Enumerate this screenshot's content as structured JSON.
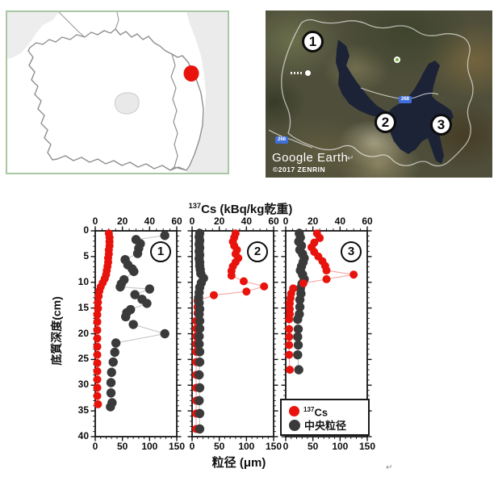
{
  "colors": {
    "cs_red": "#e8130c",
    "grain_dark": "#3a3a3a",
    "cs_line": "#f2a9a4",
    "grain_line": "#c4c4c4",
    "map_border_green": "#a9c7a5",
    "water_navy": "#1c2336",
    "road_badge_blue": "#3f6fd8"
  },
  "map_panel": {
    "location_marker": "red-dot"
  },
  "satellite_panel": {
    "markers": [
      {
        "label": "1"
      },
      {
        "label": "2"
      },
      {
        "label": "3"
      }
    ],
    "road_badges": [
      {
        "label": "268"
      },
      {
        "label": "268"
      }
    ],
    "credit_primary": "Google Earth",
    "credit_secondary": "©2017 ZENRIN",
    "return_mark": "↵"
  },
  "chart_data": {
    "type": "scatter",
    "top_axis": {
      "title_sup": "137",
      "title_main": "Cs (kBq/kg乾重)",
      "min": 0,
      "max": 60,
      "major_ticks": [
        0,
        20,
        40,
        60
      ],
      "minor_step": 5
    },
    "bottom_axis": {
      "title": "粒径 (μm)",
      "min": 0,
      "max": 150,
      "major_ticks": [
        0,
        50,
        100,
        150
      ],
      "minor_step": 10
    },
    "y_axis": {
      "title": "底質深度(cm)",
      "min": 0,
      "max": 40,
      "major_ticks": [
        0,
        5,
        10,
        15,
        20,
        25,
        30,
        35,
        40
      ],
      "minor_step": 1
    },
    "legend": {
      "cs_sup": "137",
      "cs_label": "Cs",
      "grain_label": "中央粒径",
      "position": "bottom-right-panel-3"
    },
    "series_info": [
      {
        "key": "cs",
        "name": "137Cs",
        "axis": "top",
        "units": "kBq/kg"
      },
      {
        "key": "grain",
        "name": "中央粒径",
        "axis": "bottom",
        "units": "μm"
      }
    ],
    "panels": [
      {
        "label": "1",
        "red_on_top": true,
        "cs": [
          [
            0.5,
            10
          ],
          [
            1.3,
            10.5
          ],
          [
            2.1,
            10.5
          ],
          [
            2.9,
            10.5
          ],
          [
            3.7,
            10
          ],
          [
            4.5,
            10
          ],
          [
            5.3,
            9.5
          ],
          [
            6.1,
            9.5
          ],
          [
            6.9,
            9
          ],
          [
            7.7,
            8.5
          ],
          [
            8.5,
            8
          ],
          [
            9.3,
            7
          ],
          [
            10.1,
            5.5
          ],
          [
            10.9,
            4
          ],
          [
            11.7,
            3
          ],
          [
            12.7,
            2.5
          ],
          [
            13.9,
            2
          ],
          [
            15.1,
            2
          ],
          [
            16.3,
            1.5
          ],
          [
            17.7,
            1.5
          ],
          [
            19.3,
            1.5
          ],
          [
            20.9,
            1.5
          ],
          [
            22.5,
            1.5
          ],
          [
            24.1,
            1.5
          ],
          [
            25.7,
            1.5
          ],
          [
            27.3,
            1.5
          ],
          [
            28.9,
            1.5
          ],
          [
            30.5,
            1.5
          ],
          [
            32.1,
            1.5
          ],
          [
            33.7,
            2
          ]
        ],
        "grain": [
          [
            0.9,
            128
          ],
          [
            1.7,
            75
          ],
          [
            2.5,
            83
          ],
          [
            3.4,
            80
          ],
          [
            4.4,
            78
          ],
          [
            5.6,
            55
          ],
          [
            6.6,
            60
          ],
          [
            7.4,
            68
          ],
          [
            7.9,
            71
          ],
          [
            9.5,
            53
          ],
          [
            10.3,
            48
          ],
          [
            10.9,
            46
          ],
          [
            11.3,
            100
          ],
          [
            12.4,
            73
          ],
          [
            13.3,
            86
          ],
          [
            14.1,
            95
          ],
          [
            15.3,
            65
          ],
          [
            15.9,
            58
          ],
          [
            16.7,
            56
          ],
          [
            18.2,
            70
          ],
          [
            20.0,
            128
          ],
          [
            21.8,
            38
          ],
          [
            23.6,
            36
          ],
          [
            25.5,
            33
          ],
          [
            27.5,
            30
          ],
          [
            29.5,
            29
          ],
          [
            31.5,
            29
          ],
          [
            33.4,
            31
          ],
          [
            34.2,
            28
          ]
        ]
      },
      {
        "label": "2",
        "red_on_top": false,
        "cs": [
          [
            0.5,
            32
          ],
          [
            1.3,
            31
          ],
          [
            2.1,
            30
          ],
          [
            2.9,
            31
          ],
          [
            3.7,
            33
          ],
          [
            4.5,
            32
          ],
          [
            5.3,
            34
          ],
          [
            6.1,
            32
          ],
          [
            6.9,
            30
          ],
          [
            7.8,
            29
          ],
          [
            8.7,
            29
          ],
          [
            9.8,
            38
          ],
          [
            10.8,
            53
          ],
          [
            11.8,
            40
          ],
          [
            12.5,
            16
          ],
          [
            13.6,
            4
          ],
          [
            14.8,
            4
          ],
          [
            16,
            4
          ],
          [
            17.5,
            3
          ],
          [
            19,
            3
          ],
          [
            20.5,
            3
          ],
          [
            22,
            3
          ],
          [
            23.5,
            3
          ],
          [
            25.5,
            3
          ],
          [
            28,
            3
          ],
          [
            30.5,
            3
          ],
          [
            33,
            3
          ],
          [
            35.5,
            3
          ],
          [
            38.5,
            3
          ]
        ],
        "grain": [
          [
            0.5,
            14
          ],
          [
            1.2,
            13
          ],
          [
            1.9,
            14
          ],
          [
            2.6,
            13
          ],
          [
            3.3,
            14
          ],
          [
            4.0,
            13
          ],
          [
            4.7,
            14
          ],
          [
            5.4,
            13
          ],
          [
            6.1,
            14
          ],
          [
            6.8,
            14
          ],
          [
            7.5,
            15
          ],
          [
            8.3,
            16
          ],
          [
            9.2,
            21
          ],
          [
            10.1,
            17
          ],
          [
            11,
            14
          ],
          [
            12,
            13
          ],
          [
            13,
            12
          ],
          [
            14,
            13
          ],
          [
            15.2,
            14
          ],
          [
            16.2,
            13
          ],
          [
            17.5,
            14
          ],
          [
            19,
            14
          ],
          [
            20.5,
            13
          ],
          [
            22,
            13
          ],
          [
            23.5,
            14
          ],
          [
            25.5,
            14
          ],
          [
            28,
            13
          ],
          [
            30.5,
            14
          ],
          [
            33,
            13
          ],
          [
            35.5,
            14
          ],
          [
            38.5,
            14
          ]
        ]
      },
      {
        "label": "3",
        "red_on_top": true,
        "cs": [
          [
            0.5,
            23
          ],
          [
            1.4,
            25
          ],
          [
            2.3,
            21
          ],
          [
            3.2,
            19
          ],
          [
            4.1,
            21
          ],
          [
            5.0,
            24
          ],
          [
            5.9,
            27
          ],
          [
            6.8,
            29
          ],
          [
            7.7,
            30
          ],
          [
            8.5,
            50
          ],
          [
            9.4,
            30
          ],
          [
            10.2,
            13
          ],
          [
            11.2,
            5.5
          ],
          [
            12.2,
            4
          ],
          [
            13.1,
            3.5
          ],
          [
            14.1,
            3
          ],
          [
            15.2,
            3
          ],
          [
            16.2,
            3
          ],
          [
            17.2,
            2.5
          ],
          [
            19.1,
            2.5
          ],
          [
            20.6,
            2.5
          ],
          [
            22.2,
            2.5
          ],
          [
            24.1,
            2.5
          ],
          [
            27.0,
            3
          ]
        ],
        "grain": [
          [
            0.5,
            25
          ],
          [
            1.3,
            27
          ],
          [
            2.1,
            24
          ],
          [
            2.9,
            29
          ],
          [
            3.7,
            26
          ],
          [
            4.5,
            31
          ],
          [
            5.3,
            34
          ],
          [
            6.1,
            32
          ],
          [
            6.9,
            29
          ],
          [
            7.7,
            27
          ],
          [
            8.5,
            31
          ],
          [
            9.4,
            34
          ],
          [
            10.3,
            30
          ],
          [
            11.2,
            27
          ],
          [
            12.2,
            28
          ],
          [
            13.4,
            26
          ],
          [
            14.8,
            26
          ],
          [
            16.2,
            25
          ],
          [
            17.2,
            22
          ],
          [
            19.1,
            23
          ],
          [
            20.6,
            22
          ],
          [
            22.2,
            23
          ],
          [
            24.1,
            22
          ],
          [
            27.0,
            24
          ]
        ]
      }
    ]
  },
  "footer": {
    "return_mark": "↵"
  }
}
